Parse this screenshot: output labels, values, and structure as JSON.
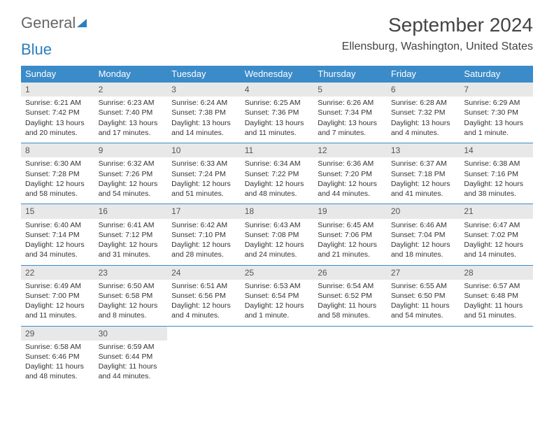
{
  "brand": {
    "part1": "General",
    "part2": "Blue"
  },
  "month_title": "September 2024",
  "location": "Ellensburg, Washington, United States",
  "colors": {
    "header_bg": "#3b8bc9",
    "header_text": "#ffffff",
    "daynum_bg": "#e8e8e8",
    "border": "#3b8bc9",
    "brand_gray": "#666666",
    "brand_blue": "#2a7fbf"
  },
  "weekdays": [
    "Sunday",
    "Monday",
    "Tuesday",
    "Wednesday",
    "Thursday",
    "Friday",
    "Saturday"
  ],
  "weeks": [
    [
      {
        "n": "1",
        "sr": "Sunrise: 6:21 AM",
        "ss": "Sunset: 7:42 PM",
        "d1": "Daylight: 13 hours",
        "d2": "and 20 minutes."
      },
      {
        "n": "2",
        "sr": "Sunrise: 6:23 AM",
        "ss": "Sunset: 7:40 PM",
        "d1": "Daylight: 13 hours",
        "d2": "and 17 minutes."
      },
      {
        "n": "3",
        "sr": "Sunrise: 6:24 AM",
        "ss": "Sunset: 7:38 PM",
        "d1": "Daylight: 13 hours",
        "d2": "and 14 minutes."
      },
      {
        "n": "4",
        "sr": "Sunrise: 6:25 AM",
        "ss": "Sunset: 7:36 PM",
        "d1": "Daylight: 13 hours",
        "d2": "and 11 minutes."
      },
      {
        "n": "5",
        "sr": "Sunrise: 6:26 AM",
        "ss": "Sunset: 7:34 PM",
        "d1": "Daylight: 13 hours",
        "d2": "and 7 minutes."
      },
      {
        "n": "6",
        "sr": "Sunrise: 6:28 AM",
        "ss": "Sunset: 7:32 PM",
        "d1": "Daylight: 13 hours",
        "d2": "and 4 minutes."
      },
      {
        "n": "7",
        "sr": "Sunrise: 6:29 AM",
        "ss": "Sunset: 7:30 PM",
        "d1": "Daylight: 13 hours",
        "d2": "and 1 minute."
      }
    ],
    [
      {
        "n": "8",
        "sr": "Sunrise: 6:30 AM",
        "ss": "Sunset: 7:28 PM",
        "d1": "Daylight: 12 hours",
        "d2": "and 58 minutes."
      },
      {
        "n": "9",
        "sr": "Sunrise: 6:32 AM",
        "ss": "Sunset: 7:26 PM",
        "d1": "Daylight: 12 hours",
        "d2": "and 54 minutes."
      },
      {
        "n": "10",
        "sr": "Sunrise: 6:33 AM",
        "ss": "Sunset: 7:24 PM",
        "d1": "Daylight: 12 hours",
        "d2": "and 51 minutes."
      },
      {
        "n": "11",
        "sr": "Sunrise: 6:34 AM",
        "ss": "Sunset: 7:22 PM",
        "d1": "Daylight: 12 hours",
        "d2": "and 48 minutes."
      },
      {
        "n": "12",
        "sr": "Sunrise: 6:36 AM",
        "ss": "Sunset: 7:20 PM",
        "d1": "Daylight: 12 hours",
        "d2": "and 44 minutes."
      },
      {
        "n": "13",
        "sr": "Sunrise: 6:37 AM",
        "ss": "Sunset: 7:18 PM",
        "d1": "Daylight: 12 hours",
        "d2": "and 41 minutes."
      },
      {
        "n": "14",
        "sr": "Sunrise: 6:38 AM",
        "ss": "Sunset: 7:16 PM",
        "d1": "Daylight: 12 hours",
        "d2": "and 38 minutes."
      }
    ],
    [
      {
        "n": "15",
        "sr": "Sunrise: 6:40 AM",
        "ss": "Sunset: 7:14 PM",
        "d1": "Daylight: 12 hours",
        "d2": "and 34 minutes."
      },
      {
        "n": "16",
        "sr": "Sunrise: 6:41 AM",
        "ss": "Sunset: 7:12 PM",
        "d1": "Daylight: 12 hours",
        "d2": "and 31 minutes."
      },
      {
        "n": "17",
        "sr": "Sunrise: 6:42 AM",
        "ss": "Sunset: 7:10 PM",
        "d1": "Daylight: 12 hours",
        "d2": "and 28 minutes."
      },
      {
        "n": "18",
        "sr": "Sunrise: 6:43 AM",
        "ss": "Sunset: 7:08 PM",
        "d1": "Daylight: 12 hours",
        "d2": "and 24 minutes."
      },
      {
        "n": "19",
        "sr": "Sunrise: 6:45 AM",
        "ss": "Sunset: 7:06 PM",
        "d1": "Daylight: 12 hours",
        "d2": "and 21 minutes."
      },
      {
        "n": "20",
        "sr": "Sunrise: 6:46 AM",
        "ss": "Sunset: 7:04 PM",
        "d1": "Daylight: 12 hours",
        "d2": "and 18 minutes."
      },
      {
        "n": "21",
        "sr": "Sunrise: 6:47 AM",
        "ss": "Sunset: 7:02 PM",
        "d1": "Daylight: 12 hours",
        "d2": "and 14 minutes."
      }
    ],
    [
      {
        "n": "22",
        "sr": "Sunrise: 6:49 AM",
        "ss": "Sunset: 7:00 PM",
        "d1": "Daylight: 12 hours",
        "d2": "and 11 minutes."
      },
      {
        "n": "23",
        "sr": "Sunrise: 6:50 AM",
        "ss": "Sunset: 6:58 PM",
        "d1": "Daylight: 12 hours",
        "d2": "and 8 minutes."
      },
      {
        "n": "24",
        "sr": "Sunrise: 6:51 AM",
        "ss": "Sunset: 6:56 PM",
        "d1": "Daylight: 12 hours",
        "d2": "and 4 minutes."
      },
      {
        "n": "25",
        "sr": "Sunrise: 6:53 AM",
        "ss": "Sunset: 6:54 PM",
        "d1": "Daylight: 12 hours",
        "d2": "and 1 minute."
      },
      {
        "n": "26",
        "sr": "Sunrise: 6:54 AM",
        "ss": "Sunset: 6:52 PM",
        "d1": "Daylight: 11 hours",
        "d2": "and 58 minutes."
      },
      {
        "n": "27",
        "sr": "Sunrise: 6:55 AM",
        "ss": "Sunset: 6:50 PM",
        "d1": "Daylight: 11 hours",
        "d2": "and 54 minutes."
      },
      {
        "n": "28",
        "sr": "Sunrise: 6:57 AM",
        "ss": "Sunset: 6:48 PM",
        "d1": "Daylight: 11 hours",
        "d2": "and 51 minutes."
      }
    ],
    [
      {
        "n": "29",
        "sr": "Sunrise: 6:58 AM",
        "ss": "Sunset: 6:46 PM",
        "d1": "Daylight: 11 hours",
        "d2": "and 48 minutes."
      },
      {
        "n": "30",
        "sr": "Sunrise: 6:59 AM",
        "ss": "Sunset: 6:44 PM",
        "d1": "Daylight: 11 hours",
        "d2": "and 44 minutes."
      },
      null,
      null,
      null,
      null,
      null
    ]
  ]
}
